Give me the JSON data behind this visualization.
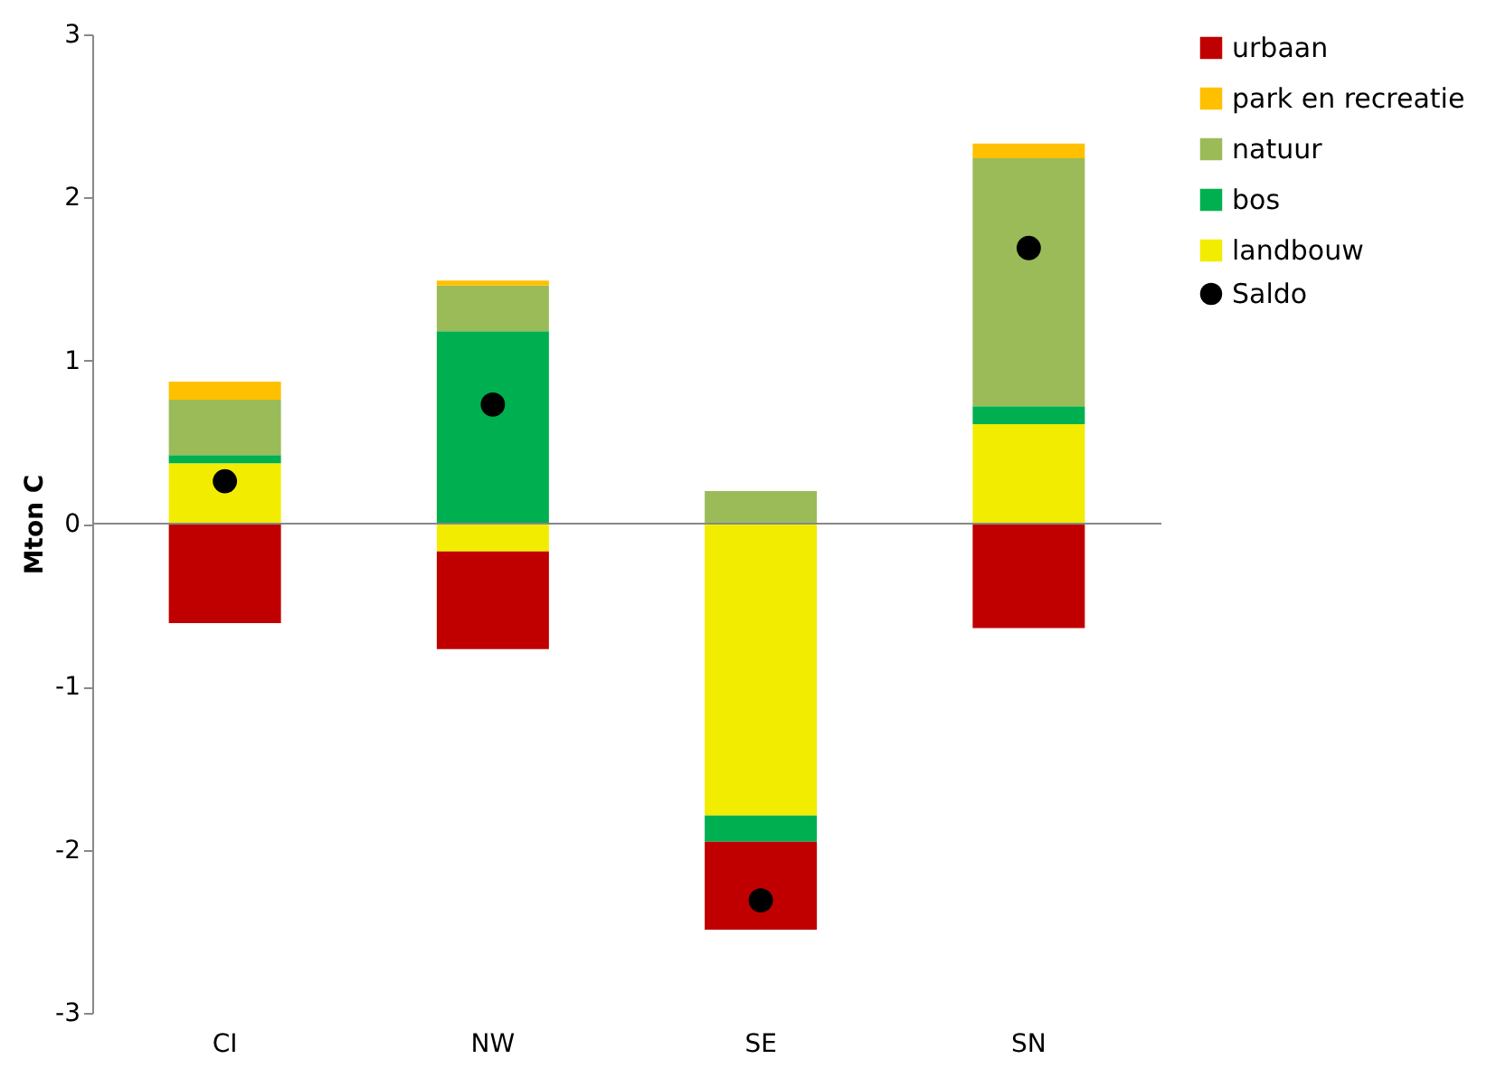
{
  "chart_data": {
    "type": "bar",
    "stacked": true,
    "ylabel": "Mton C",
    "categories": [
      "CI",
      "NW",
      "SE",
      "SN"
    ],
    "series": [
      {
        "name": "landbouw",
        "color": "#f2ec00",
        "values": [
          0.37,
          -0.17,
          -1.79,
          0.61
        ]
      },
      {
        "name": "bos",
        "color": "#00b050",
        "values": [
          0.05,
          1.18,
          -0.16,
          0.11
        ]
      },
      {
        "name": "natuur",
        "color": "#9bbb59",
        "values": [
          0.34,
          0.28,
          0.2,
          1.52
        ]
      },
      {
        "name": "park en recreatie",
        "color": "#ffc000",
        "values": [
          0.11,
          0.03,
          null,
          0.09
        ]
      },
      {
        "name": "urbaan",
        "color": "#c00000",
        "values": [
          -0.61,
          -0.6,
          -0.54,
          -0.64
        ]
      },
      {
        "name": "Saldo",
        "type": "scatter",
        "color": "#000000",
        "marker": "circle",
        "x": [
          "CI",
          "NW",
          "SE",
          "SN"
        ],
        "values": [
          0.26,
          0.73,
          -2.31,
          1.69
        ]
      }
    ],
    "ylim": [
      -3,
      3
    ],
    "yticks": [
      -3,
      -2,
      -1,
      0,
      1,
      2,
      3
    ],
    "legend": "right"
  }
}
